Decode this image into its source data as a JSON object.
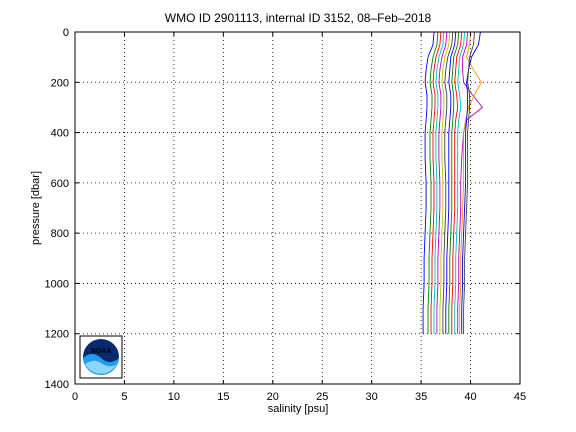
{
  "chart_data": {
    "type": "line",
    "title": "WMO ID 2901113, internal ID 3152, 08–Feb–2018",
    "xlabel": "salinity [psu]",
    "ylabel": "pressure [dbar]",
    "xlim": [
      0,
      45
    ],
    "ylim": [
      0,
      1400
    ],
    "y_reversed": true,
    "grid": "dotted",
    "xticks": [
      "0",
      "5",
      "10",
      "15",
      "20",
      "25",
      "30",
      "35",
      "40",
      "45"
    ],
    "yticks": [
      "0",
      "200",
      "400",
      "600",
      "800",
      "1000",
      "1200",
      "1400"
    ],
    "logo": "NOAA",
    "pressure_levels": [
      0,
      50,
      100,
      150,
      200,
      250,
      300,
      350,
      400,
      500,
      600,
      700,
      800,
      900,
      1000,
      1100,
      1200
    ],
    "series": [
      {
        "color": "#0000ff",
        "values": [
          36.3,
          36.2,
          35.7,
          35.5,
          35.4,
          35.6,
          35.6,
          35.5,
          35.4,
          35.4,
          35.5,
          35.5,
          35.4,
          35.3,
          35.3,
          35.2,
          35.2
        ]
      },
      {
        "color": "#008000",
        "values": [
          36.7,
          36.6,
          36.2,
          36.0,
          35.9,
          36.1,
          36.1,
          36.0,
          35.9,
          35.9,
          36.0,
          36.0,
          35.9,
          35.8,
          35.8,
          35.7,
          35.7
        ]
      },
      {
        "color": "#ff0000",
        "values": [
          37.0,
          36.9,
          36.5,
          36.3,
          36.2,
          36.4,
          36.4,
          36.3,
          36.2,
          36.2,
          36.3,
          36.3,
          36.2,
          36.1,
          36.1,
          36.0,
          36.0
        ]
      },
      {
        "color": "#00bfbf",
        "values": [
          37.3,
          37.2,
          36.8,
          36.6,
          36.5,
          36.7,
          36.7,
          36.6,
          36.5,
          36.5,
          36.6,
          36.6,
          36.5,
          36.4,
          36.4,
          36.3,
          36.3
        ]
      },
      {
        "color": "#bf00bf",
        "values": [
          37.6,
          37.5,
          37.1,
          36.9,
          36.8,
          37.0,
          37.0,
          36.9,
          36.8,
          36.8,
          36.9,
          36.9,
          36.8,
          36.7,
          36.7,
          36.6,
          36.6
        ]
      },
      {
        "color": "#bfbf00",
        "values": [
          37.9,
          37.8,
          37.4,
          37.2,
          37.1,
          37.3,
          37.3,
          37.2,
          37.1,
          37.1,
          37.2,
          37.2,
          37.1,
          37.0,
          37.0,
          36.9,
          36.9
        ]
      },
      {
        "color": "#404040",
        "values": [
          38.2,
          38.1,
          37.7,
          37.5,
          37.4,
          37.6,
          37.6,
          37.5,
          37.4,
          37.4,
          37.5,
          37.5,
          37.4,
          37.3,
          37.3,
          37.2,
          37.2
        ]
      },
      {
        "color": "#0000ff",
        "values": [
          38.5,
          38.4,
          38.0,
          37.9,
          37.8,
          38.0,
          38.0,
          37.9,
          37.8,
          37.8,
          37.8,
          37.8,
          37.7,
          37.6,
          37.6,
          37.5,
          37.5
        ]
      },
      {
        "color": "#008000",
        "values": [
          38.8,
          38.7,
          38.3,
          38.2,
          38.1,
          38.3,
          38.3,
          38.2,
          38.1,
          38.1,
          38.1,
          38.1,
          38.0,
          37.9,
          37.9,
          37.8,
          37.8
        ]
      },
      {
        "color": "#ff0000",
        "values": [
          39.1,
          39.0,
          38.6,
          38.5,
          38.4,
          38.6,
          38.7,
          38.5,
          38.4,
          38.4,
          38.4,
          38.4,
          38.3,
          38.2,
          38.2,
          38.1,
          38.1
        ]
      },
      {
        "color": "#00bfbf",
        "values": [
          39.4,
          39.3,
          38.9,
          38.8,
          38.7,
          38.9,
          39.0,
          38.8,
          38.7,
          38.7,
          38.7,
          38.7,
          38.6,
          38.5,
          38.5,
          38.4,
          38.4
        ]
      },
      {
        "color": "#bf00bf",
        "values": [
          39.7,
          39.6,
          39.2,
          39.2,
          39.3,
          40.2,
          41.2,
          39.6,
          39.3,
          39.1,
          39.0,
          39.0,
          38.9,
          38.8,
          38.8,
          38.7,
          38.7
        ]
      },
      {
        "color": "#ff8c00",
        "values": [
          40.0,
          39.9,
          39.6,
          40.3,
          41.1,
          40.4,
          39.8,
          39.5,
          39.3,
          39.3,
          39.3,
          39.2,
          39.1,
          39.0,
          39.0,
          38.9,
          38.9
        ]
      },
      {
        "color": "#0000ff",
        "values": [
          41.0,
          40.8,
          40.1,
          39.8,
          39.6,
          39.7,
          39.7,
          39.6,
          39.5,
          39.5,
          39.5,
          39.4,
          39.3,
          39.2,
          39.2,
          39.1,
          39.1
        ]
      },
      {
        "color": "#404040",
        "values": [
          40.4,
          40.3,
          39.9,
          39.8,
          39.7,
          39.9,
          39.9,
          39.8,
          39.7,
          39.7,
          39.7,
          39.6,
          39.5,
          39.4,
          39.4,
          39.3,
          39.3
        ]
      }
    ]
  }
}
